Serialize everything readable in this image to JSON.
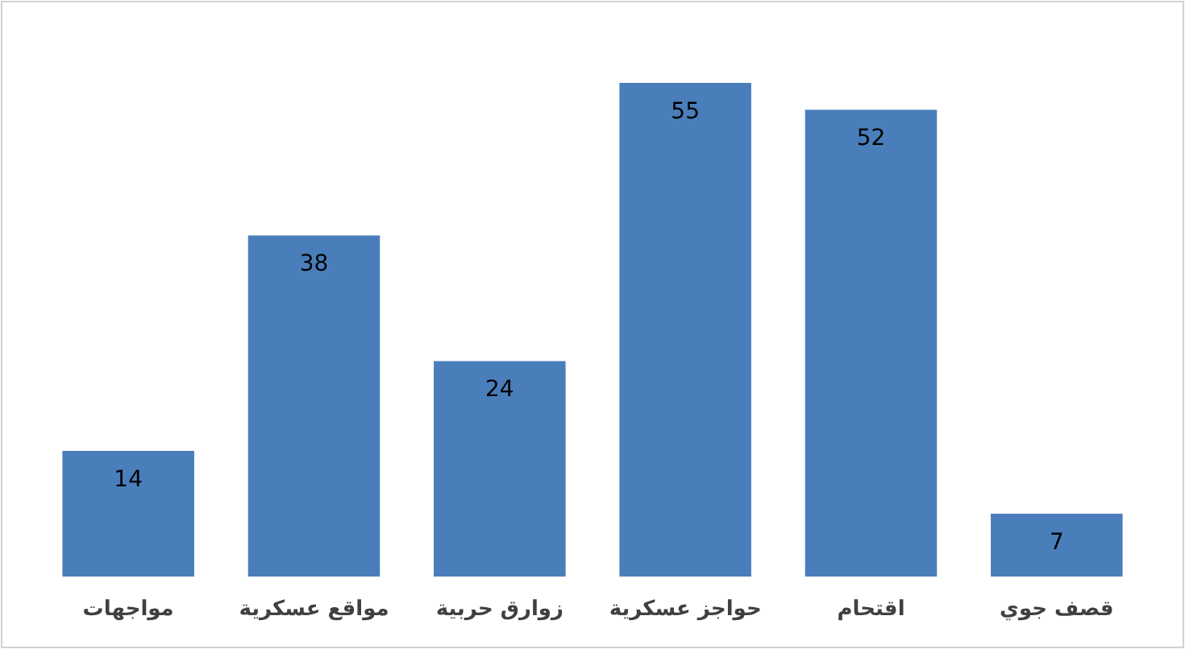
{
  "chart_data": {
    "type": "bar",
    "categories": [
      "مواجهات",
      "مواقع عسكرية",
      "زوارق حربية",
      "حواجز عسكرية",
      "اقتحام",
      "قصف جوي"
    ],
    "values": [
      14,
      38,
      24,
      55,
      52,
      7
    ],
    "color": "#4a7ebb",
    "data_labels": true
  }
}
